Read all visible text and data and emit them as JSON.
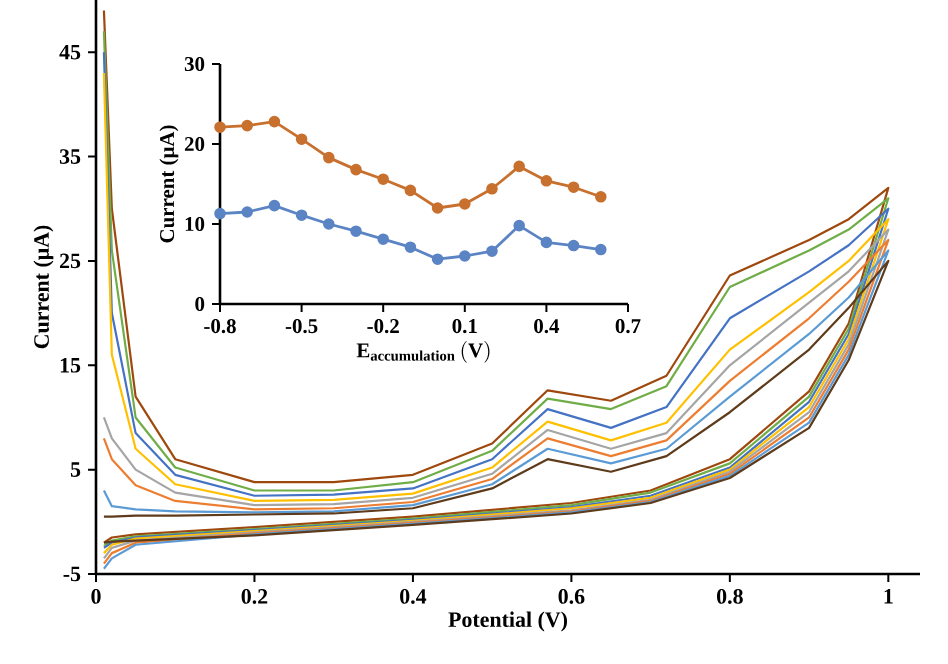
{
  "chart_data": [
    {
      "type": "line",
      "xlabel": "Potential (V)",
      "ylabel": "Current (μA)",
      "xlim": [
        0,
        1.04
      ],
      "ylim": [
        -5,
        50
      ],
      "xticks": [
        0,
        0.2,
        0.4,
        0.6,
        0.8,
        1
      ],
      "yticks": [
        -5,
        5,
        15,
        25,
        35,
        45
      ],
      "grid": false,
      "legend": false,
      "x": [
        0.01,
        0.02,
        0.05,
        0.1,
        0.2,
        0.3,
        0.4,
        0.5,
        0.57,
        0.65,
        0.72,
        0.8,
        0.9,
        0.95,
        1.0,
        0.95,
        0.9,
        0.8,
        0.7,
        0.6,
        0.4,
        0.2,
        0.05,
        0.02,
        0.01
      ],
      "series": [
        {
          "color": "#9e480e",
          "values": [
            49,
            30,
            12,
            6,
            3.8,
            3.8,
            4.5,
            7.5,
            12.6,
            11.6,
            14,
            23.6,
            27,
            29,
            32,
            19,
            12.5,
            6,
            3,
            1.8,
            0.5,
            -0.5,
            -1.2,
            -1.5,
            -2
          ]
        },
        {
          "color": "#70ad47",
          "values": [
            47,
            26,
            10,
            5.2,
            3,
            3,
            3.8,
            6.8,
            11.8,
            10.8,
            13,
            22.5,
            26,
            28,
            31,
            18.5,
            12,
            5.6,
            2.8,
            1.6,
            0.3,
            -0.7,
            -1.4,
            -1.8,
            -2.3
          ]
        },
        {
          "color": "#4472c4",
          "values": [
            45,
            20,
            8.5,
            4.5,
            2.5,
            2.6,
            3.2,
            6,
            10.8,
            9,
            11,
            19.5,
            24,
            26.5,
            30,
            18,
            11.5,
            5.2,
            2.5,
            1.4,
            0.2,
            -0.8,
            -1.5,
            -2,
            -2.5
          ]
        },
        {
          "color": "#ffc000",
          "values": [
            43,
            16,
            7,
            3.6,
            2,
            2.1,
            2.7,
            5.2,
            9.6,
            7.8,
            9.5,
            16.5,
            22,
            25,
            29,
            17.5,
            11,
            5,
            2.3,
            1.3,
            0.1,
            -0.9,
            -1.6,
            -2.2,
            -3
          ]
        },
        {
          "color": "#a5a5a5",
          "values": [
            10,
            8,
            5,
            2.8,
            1.6,
            1.7,
            2.3,
            4.6,
            8.8,
            7,
            8.5,
            15,
            21,
            24,
            28,
            17,
            10.5,
            4.8,
            2.1,
            1.1,
            0,
            -1,
            -1.8,
            -2.5,
            -3.5
          ]
        },
        {
          "color": "#ed7d31",
          "values": [
            8,
            6,
            3.5,
            2,
            1.2,
            1.3,
            1.9,
            4.1,
            8,
            6.3,
            7.8,
            13.5,
            19.5,
            23,
            27,
            16.5,
            10,
            4.6,
            2,
            1,
            -0.1,
            -1.1,
            -2,
            -3,
            -4
          ]
        },
        {
          "color": "#5b9bd5",
          "values": [
            3,
            1.5,
            1.2,
            1,
            0.9,
            1,
            1.6,
            3.6,
            7,
            5.6,
            7,
            12,
            18,
            21.5,
            26,
            16,
            9.5,
            4.4,
            1.9,
            0.9,
            -0.2,
            -1.2,
            -2.2,
            -3.5,
            -4.5
          ]
        },
        {
          "color": "#5e3b1a",
          "values": [
            0.5,
            0.5,
            0.6,
            0.6,
            0.7,
            0.8,
            1.3,
            3.2,
            6,
            4.8,
            6.3,
            10.5,
            16.5,
            20.5,
            25,
            15.5,
            9,
            4.2,
            1.8,
            0.8,
            -0.3,
            -1.3,
            -1.8,
            -1.9,
            -2
          ]
        }
      ]
    },
    {
      "type": "line",
      "xlabel": "\\mathbf{E}_{\\mathbf{accumulation}}\\,\\mathbf{(V)}",
      "ylabel": "Current (μA)",
      "xlim": [
        -0.8,
        0.7
      ],
      "ylim": [
        0,
        30
      ],
      "xticks": [
        -0.8,
        -0.5,
        -0.2,
        0.1,
        0.4,
        0.7
      ],
      "yticks": [
        0,
        10,
        20,
        30
      ],
      "marker": "circle",
      "grid": false,
      "legend": false,
      "x": [
        -0.8,
        -0.7,
        -0.6,
        -0.5,
        -0.4,
        -0.3,
        -0.2,
        -0.1,
        0.0,
        0.1,
        0.2,
        0.3,
        0.4,
        0.5,
        0.6
      ],
      "series": [
        {
          "color": "#c8702e",
          "values": [
            22.1,
            22.3,
            22.8,
            20.6,
            18.3,
            16.8,
            15.6,
            14.2,
            12.0,
            12.5,
            14.4,
            17.2,
            15.4,
            14.6,
            13.4
          ]
        },
        {
          "color": "#5b84c4",
          "values": [
            11.3,
            11.5,
            12.3,
            11.1,
            10.0,
            9.1,
            8.1,
            7.1,
            5.6,
            6.0,
            6.6,
            9.8,
            7.7,
            7.3,
            6.8
          ]
        }
      ]
    }
  ]
}
